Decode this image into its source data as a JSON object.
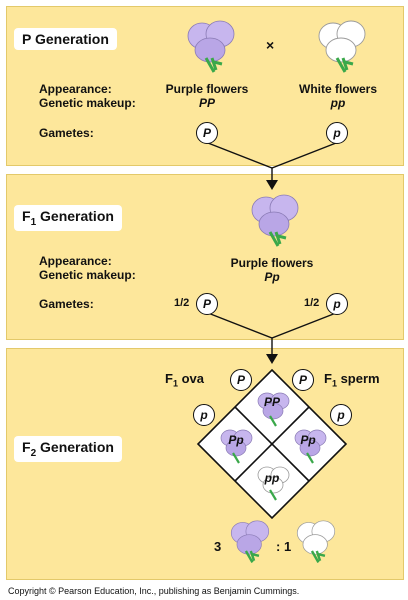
{
  "p_generation": {
    "title": "P Generation",
    "cross_symbol": "×",
    "appearance_label": "Appearance:",
    "genetic_label": "Genetic makeup:",
    "gametes_label": "Gametes:",
    "left_appearance": "Purple flowers",
    "left_genotype": "PP",
    "right_appearance": "White flowers",
    "right_genotype": "pp",
    "left_gamete": "P",
    "right_gamete": "p"
  },
  "f1_generation": {
    "title_main": "F",
    "title_sub": "1",
    "title_rest": " Generation",
    "appearance_label": "Appearance:",
    "genetic_label": "Genetic makeup:",
    "gametes_label": "Gametes:",
    "appearance": "Purple flowers",
    "genotype": "Pp",
    "left_fraction": "1/2",
    "left_gamete": "P",
    "right_fraction": "1/2",
    "right_gamete": "p"
  },
  "f2_generation": {
    "title_main": "F",
    "title_sub": "2",
    "title_rest": " Generation",
    "ova_main": "F",
    "ova_sub": "1",
    "ova_rest": " ova",
    "sperm_main": "F",
    "sperm_sub": "1",
    "sperm_rest": " sperm",
    "ova_alleles": [
      "P",
      "p"
    ],
    "sperm_alleles": [
      "P",
      "p"
    ],
    "punnett": {
      "top": "PP",
      "left": "Pp",
      "right": "Pp",
      "bottom": "pp"
    },
    "ratio_purple": "3",
    "ratio_white": ": 1"
  },
  "colors": {
    "panel": "#fde79b",
    "purple_flower": "#c7b6ee",
    "white_flower": "#ffffff",
    "stem": "#3aa84a"
  },
  "copyright": "Copyright © Pearson Education, Inc., publishing as Benjamin Cummings."
}
